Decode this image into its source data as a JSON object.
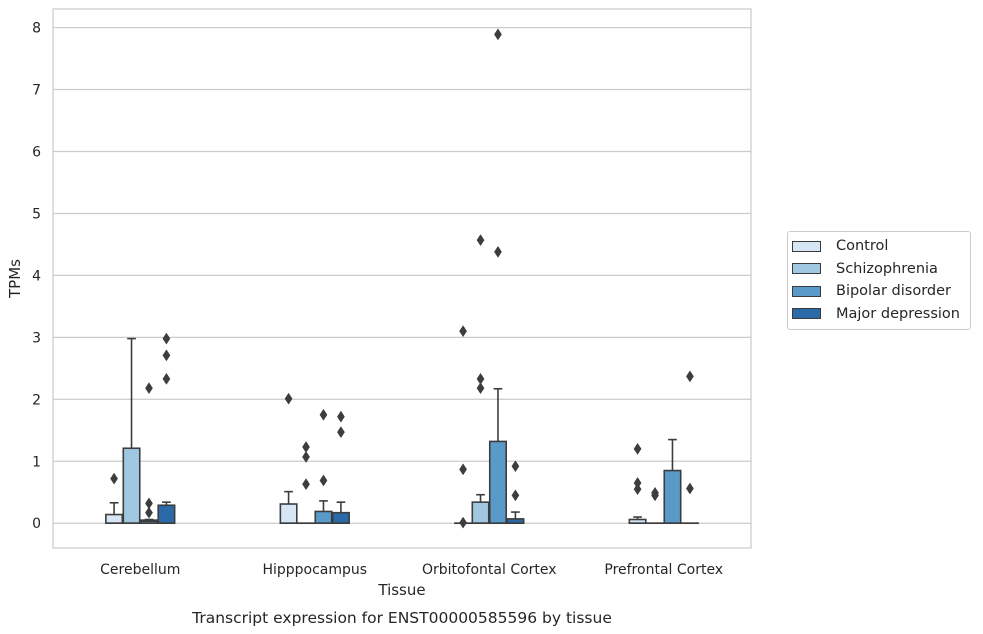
{
  "chart_data": {
    "type": "box",
    "title": "",
    "caption": "Transcript expression for ENST00000585596 by tissue",
    "xlabel": "Tissue",
    "ylabel": "TPMs",
    "ylim": [
      -0.4,
      8.3
    ],
    "yticks": [
      0,
      1,
      2,
      3,
      4,
      5,
      6,
      7,
      8
    ],
    "grid": "horizontal",
    "legend_position": "right",
    "categories": [
      "Cerebellum",
      "Hipppocampus",
      "Orbitofontal Cortex",
      "Prefrontal Cortex"
    ],
    "series": [
      {
        "name": "Control",
        "color": "#d6e6f4",
        "boxes": [
          {
            "q1": 0.0,
            "median": 0.0,
            "q3": 0.14,
            "whisker_low": 0.0,
            "whisker_high": 0.33,
            "outliers": [
              0.72
            ]
          },
          {
            "q1": 0.0,
            "median": 0.0,
            "q3": 0.31,
            "whisker_low": 0.0,
            "whisker_high": 0.51,
            "outliers": [
              2.01
            ]
          },
          {
            "q1": 0.0,
            "median": 0.0,
            "q3": 0.0,
            "whisker_low": 0.0,
            "whisker_high": 0.0,
            "outliers": [
              0.01,
              0.87,
              3.1
            ]
          },
          {
            "q1": 0.0,
            "median": 0.0,
            "q3": 0.06,
            "whisker_low": 0.0,
            "whisker_high": 0.1,
            "outliers": [
              0.55,
              0.65,
              1.2
            ]
          }
        ]
      },
      {
        "name": "Schizophrenia",
        "color": "#a0c8e0",
        "boxes": [
          {
            "q1": 0.0,
            "median": 0.0,
            "q3": 1.21,
            "whisker_low": 0.0,
            "whisker_high": 2.98,
            "outliers": []
          },
          {
            "q1": 0.0,
            "median": 0.0,
            "q3": 0.0,
            "whisker_low": 0.0,
            "whisker_high": 0.0,
            "outliers": [
              0.63,
              1.07,
              1.23
            ]
          },
          {
            "q1": 0.0,
            "median": 0.0,
            "q3": 0.34,
            "whisker_low": 0.0,
            "whisker_high": 0.46,
            "outliers": [
              2.18,
              2.33,
              4.57
            ]
          },
          {
            "q1": 0.0,
            "median": 0.0,
            "q3": 0.0,
            "whisker_low": 0.0,
            "whisker_high": 0.0,
            "outliers": [
              0.45,
              0.49
            ]
          }
        ]
      },
      {
        "name": "Bipolar disorder",
        "color": "#5a9ac8",
        "boxes": [
          {
            "q1": 0.0,
            "median": 0.03,
            "q3": 0.05,
            "whisker_low": 0.0,
            "whisker_high": 0.06,
            "outliers": [
              0.17,
              0.32,
              2.18
            ]
          },
          {
            "q1": 0.0,
            "median": 0.0,
            "q3": 0.19,
            "whisker_low": 0.0,
            "whisker_high": 0.36,
            "outliers": [
              0.69,
              1.75
            ]
          },
          {
            "q1": 0.0,
            "median": 0.0,
            "q3": 1.32,
            "whisker_low": 0.0,
            "whisker_high": 2.17,
            "outliers": [
              4.38,
              7.89
            ]
          },
          {
            "q1": 0.0,
            "median": 0.0,
            "q3": 0.85,
            "whisker_low": 0.0,
            "whisker_high": 1.35,
            "outliers": []
          }
        ]
      },
      {
        "name": "Major depression",
        "color": "#2a6aa8",
        "boxes": [
          {
            "q1": 0.0,
            "median": 0.0,
            "q3": 0.29,
            "whisker_low": 0.0,
            "whisker_high": 0.34,
            "outliers": [
              2.33,
              2.71,
              2.98
            ]
          },
          {
            "q1": 0.0,
            "median": 0.0,
            "q3": 0.17,
            "whisker_low": 0.0,
            "whisker_high": 0.34,
            "outliers": [
              1.47,
              1.72
            ]
          },
          {
            "q1": 0.0,
            "median": 0.0,
            "q3": 0.07,
            "whisker_low": 0.0,
            "whisker_high": 0.18,
            "outliers": [
              0.45,
              0.92
            ]
          },
          {
            "q1": 0.0,
            "median": 0.0,
            "q3": 0.0,
            "whisker_low": 0.0,
            "whisker_high": 0.0,
            "outliers": [
              0.56,
              2.37
            ]
          }
        ]
      }
    ]
  }
}
